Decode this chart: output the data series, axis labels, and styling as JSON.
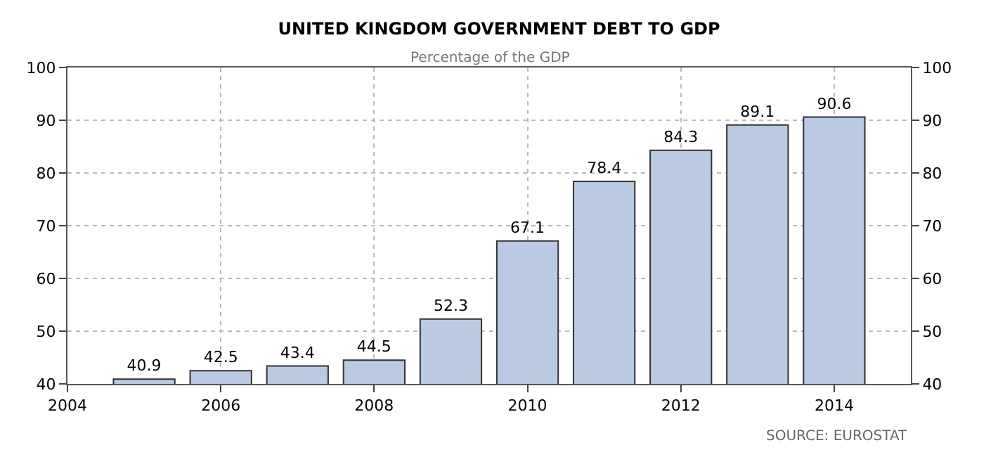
{
  "chart_data": {
    "type": "bar",
    "title": "UNITED KINGDOM GOVERNMENT DEBT TO GDP",
    "subtitle": "Percentage of the GDP",
    "x": [
      2005,
      2006,
      2007,
      2008,
      2009,
      2010,
      2011,
      2012,
      2013,
      2014
    ],
    "values": [
      40.9,
      42.5,
      43.4,
      44.5,
      52.3,
      67.1,
      78.4,
      84.3,
      89.1,
      90.6
    ],
    "color": "#b9cae2",
    "data_labels": true,
    "xlim": [
      2004,
      2015
    ],
    "xticks": [
      2004,
      2006,
      2008,
      2010,
      2012,
      2014
    ],
    "ylim": [
      40,
      100
    ],
    "yticks": [
      40,
      50,
      60,
      70,
      80,
      90,
      100
    ],
    "y2lim": [
      40,
      100
    ],
    "y2ticks": [
      40,
      50,
      60,
      70,
      80,
      90,
      100
    ],
    "grid": true,
    "annotations": [
      "SOURCE: EUROSTAT"
    ]
  }
}
